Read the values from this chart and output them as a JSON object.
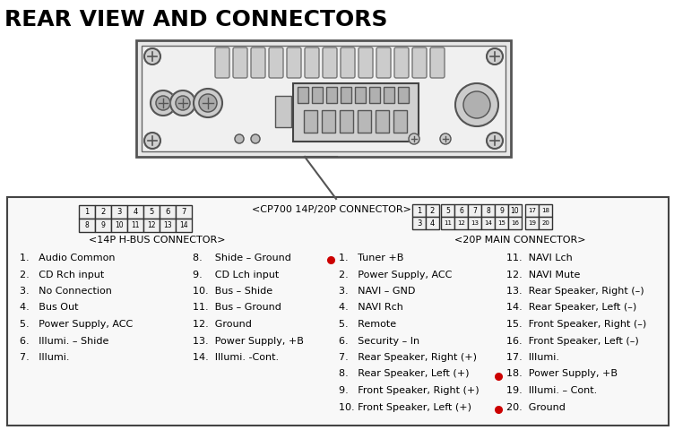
{
  "title": "REAR VIEW AND CONNECTORS",
  "bg_color": "#ffffff",
  "border_color": "#000000",
  "connector_label": "<CP700 14P/20P CONNECTOR>",
  "hbus_label": "<14P H-BUS CONNECTOR>",
  "main_label": "<20P MAIN CONNECTOR>",
  "hbus_pins_row1": [
    "1",
    "2",
    "3",
    "4",
    "5",
    "6",
    "7"
  ],
  "hbus_pins_row2": [
    "8",
    "9",
    "10",
    "11",
    "12",
    "13",
    "14"
  ],
  "hbus_items_col1": [
    "1.   Audio Common",
    "2.   CD Rch input",
    "3.   No Connection",
    "4.   Bus Out",
    "5.   Power Supply, ACC",
    "6.   Illumi. – Shide",
    "7.   Illumi."
  ],
  "hbus_items_col2": [
    "8.    Shide – Ground",
    "9.    CD Lch input",
    "10.  Bus – Shide",
    "11.  Bus – Ground",
    "12.  Ground",
    "13.  Power Supply, +B",
    "14.  Illumi. -Cont."
  ],
  "main_items_col1": [
    "1.   Tuner +B",
    "2.   Power Supply, ACC",
    "3.   NAVI – GND",
    "4.   NAVI Rch",
    "5.   Remote",
    "6.   Security – In",
    "7.   Rear Speaker, Right (+)",
    "8.   Rear Speaker, Left (+)",
    "9.   Front Speaker, Right (+)",
    "10. Front Speaker, Left (+)"
  ],
  "main_items_col2": [
    "11.  NAVI Lch",
    "12.  NAVI Mute",
    "13.  Rear Speaker, Right (–)",
    "14.  Rear Speaker, Left (–)",
    "15.  Front Speaker, Right (–)",
    "16.  Front Speaker, Left (–)",
    "17.  Illumi.",
    "18.  Power Supply, +B",
    "19.  Illumi. – Cont.",
    "20.  Ground"
  ],
  "red_dots_col1": [
    0
  ],
  "red_dots_col2": [
    7,
    9
  ]
}
